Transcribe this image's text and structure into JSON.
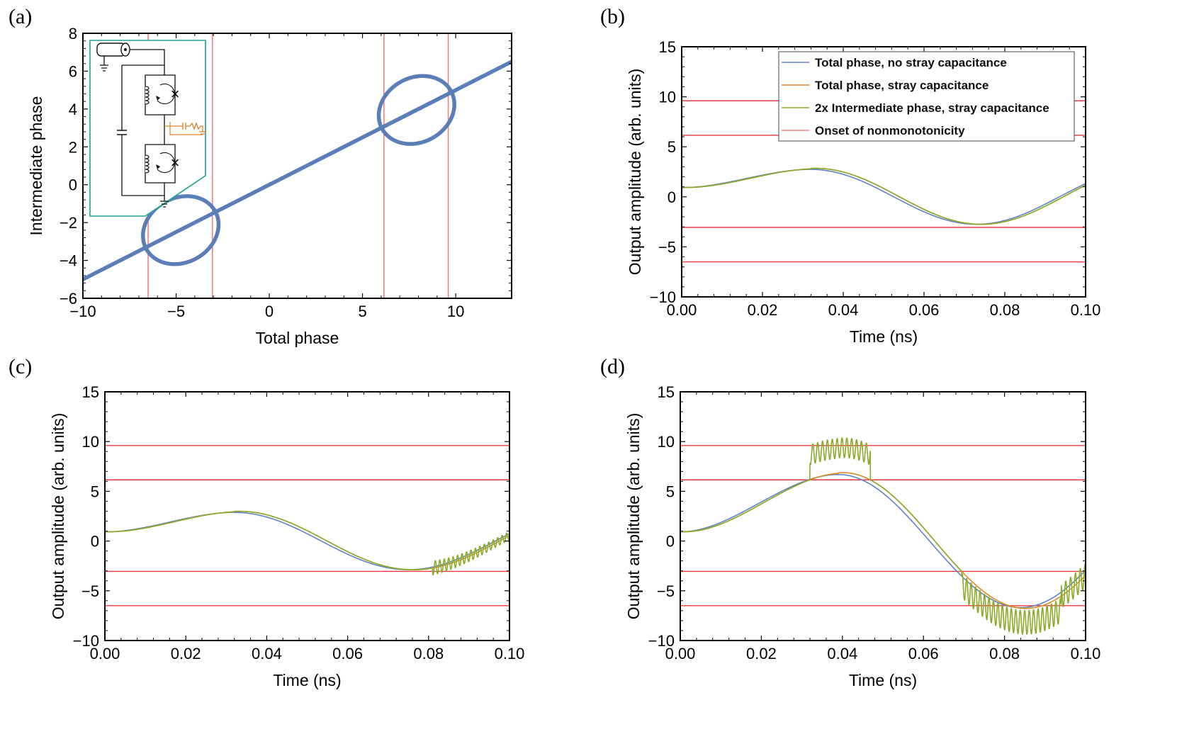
{
  "colors": {
    "loop": "#5a7fb8",
    "blue": "#5b84c4",
    "orange": "#e08a1e",
    "green": "#8aab2a",
    "red": "#e8393f",
    "pink": "#f08080",
    "inset": "#1aa38a",
    "stray": "#d9822b"
  },
  "chart_data": [
    {
      "id": "a",
      "panel_label": "(a)",
      "type": "line",
      "xlabel": "Total phase",
      "ylabel": "Intermediate phase",
      "xlim": [
        -10,
        13
      ],
      "ylim": [
        -6,
        8
      ],
      "xticks": [
        -10,
        -5,
        0,
        5,
        10
      ],
      "yticks": [
        -6,
        -4,
        -2,
        0,
        2,
        4,
        6,
        8
      ],
      "xtick_labels": [
        "−10",
        "−5",
        "0",
        "5",
        "10"
      ],
      "ytick_labels": [
        "−6",
        "−4",
        "−2",
        "0",
        "2",
        "4",
        "6",
        "8"
      ],
      "vlines": [
        -6.5,
        -3.05,
        6.15,
        9.6
      ],
      "series": [
        {
          "name": "Main branch",
          "x": [
            -10,
            13
          ],
          "y": [
            -5,
            6.5
          ]
        },
        {
          "name": "Lower loop",
          "center": [
            -4.75,
            -2.4
          ],
          "u_radius": 2.1,
          "v_radius": 0.9
        },
        {
          "name": "Upper loop",
          "center": [
            7.9,
            3.95
          ],
          "u_radius": 2.1,
          "v_radius": 0.9
        }
      ]
    },
    {
      "id": "b",
      "panel_label": "(b)",
      "type": "line",
      "xlabel": "Time (ns)",
      "ylabel": "Output amplitude (arb. units)",
      "xlim": [
        0,
        0.1
      ],
      "ylim": [
        -10,
        15
      ],
      "xticks": [
        0,
        0.02,
        0.04,
        0.06,
        0.08,
        0.1
      ],
      "yticks": [
        -10,
        -5,
        0,
        5,
        10,
        15
      ],
      "xtick_labels": [
        "0.00",
        "0.02",
        "0.04",
        "0.06",
        "0.08",
        "0.10"
      ],
      "ytick_labels": [
        "−10",
        "−5",
        "0",
        "5",
        "10",
        "15"
      ],
      "hlines": [
        9.6,
        6.15,
        -3.05,
        -6.5
      ],
      "drive": {
        "amp": 3.0,
        "a": 0.032,
        "b": 0.073,
        "gain": 8.6
      },
      "legend": [
        {
          "label": "Total phase, no stray capacitance",
          "color": "#5b84c4"
        },
        {
          "label": "Total phase, stray capacitance",
          "color": "#e08a1e"
        },
        {
          "label": "2x Intermediate phase, stray capacitance",
          "color": "#8aab2a"
        },
        {
          "label": "Onset of nonmonotonicity",
          "color": "#f08080"
        }
      ]
    },
    {
      "id": "c",
      "panel_label": "(c)",
      "type": "line",
      "xlabel": "Time (ns)",
      "ylabel": "Output amplitude (arb. units)",
      "xlim": [
        0,
        0.1
      ],
      "ylim": [
        -10,
        15
      ],
      "xticks": [
        0,
        0.02,
        0.04,
        0.06,
        0.08,
        0.1
      ],
      "yticks": [
        -10,
        -5,
        0,
        5,
        10,
        15
      ],
      "xtick_labels": [
        "0.00",
        "0.02",
        "0.04",
        "0.06",
        "0.08",
        "0.10"
      ],
      "ytick_labels": [
        "−10",
        "−5",
        "0",
        "5",
        "10",
        "15"
      ],
      "hlines": [
        9.6,
        6.15,
        -3.05,
        -6.5
      ],
      "drive": {
        "amp": 3.15,
        "a": 0.032,
        "b": 0.075,
        "gain": 9.0
      }
    },
    {
      "id": "d",
      "panel_label": "(d)",
      "type": "line",
      "xlabel": "Time (ns)",
      "ylabel": "Output amplitude (arb. units)",
      "xlim": [
        0,
        0.1
      ],
      "ylim": [
        -10,
        15
      ],
      "xticks": [
        0,
        0.02,
        0.04,
        0.06,
        0.08,
        0.1
      ],
      "yticks": [
        -10,
        -5,
        0,
        5,
        10,
        15
      ],
      "xtick_labels": [
        "0.00",
        "0.02",
        "0.04",
        "0.06",
        "0.08",
        "0.10"
      ],
      "ytick_labels": [
        "−10",
        "−5",
        "0",
        "5",
        "10",
        "15"
      ],
      "hlines": [
        9.6,
        6.15,
        -3.05,
        -6.5
      ],
      "drive": {
        "amp": 7.3,
        "a": 0.039,
        "b": 0.084,
        "gain": 26.0
      }
    }
  ]
}
